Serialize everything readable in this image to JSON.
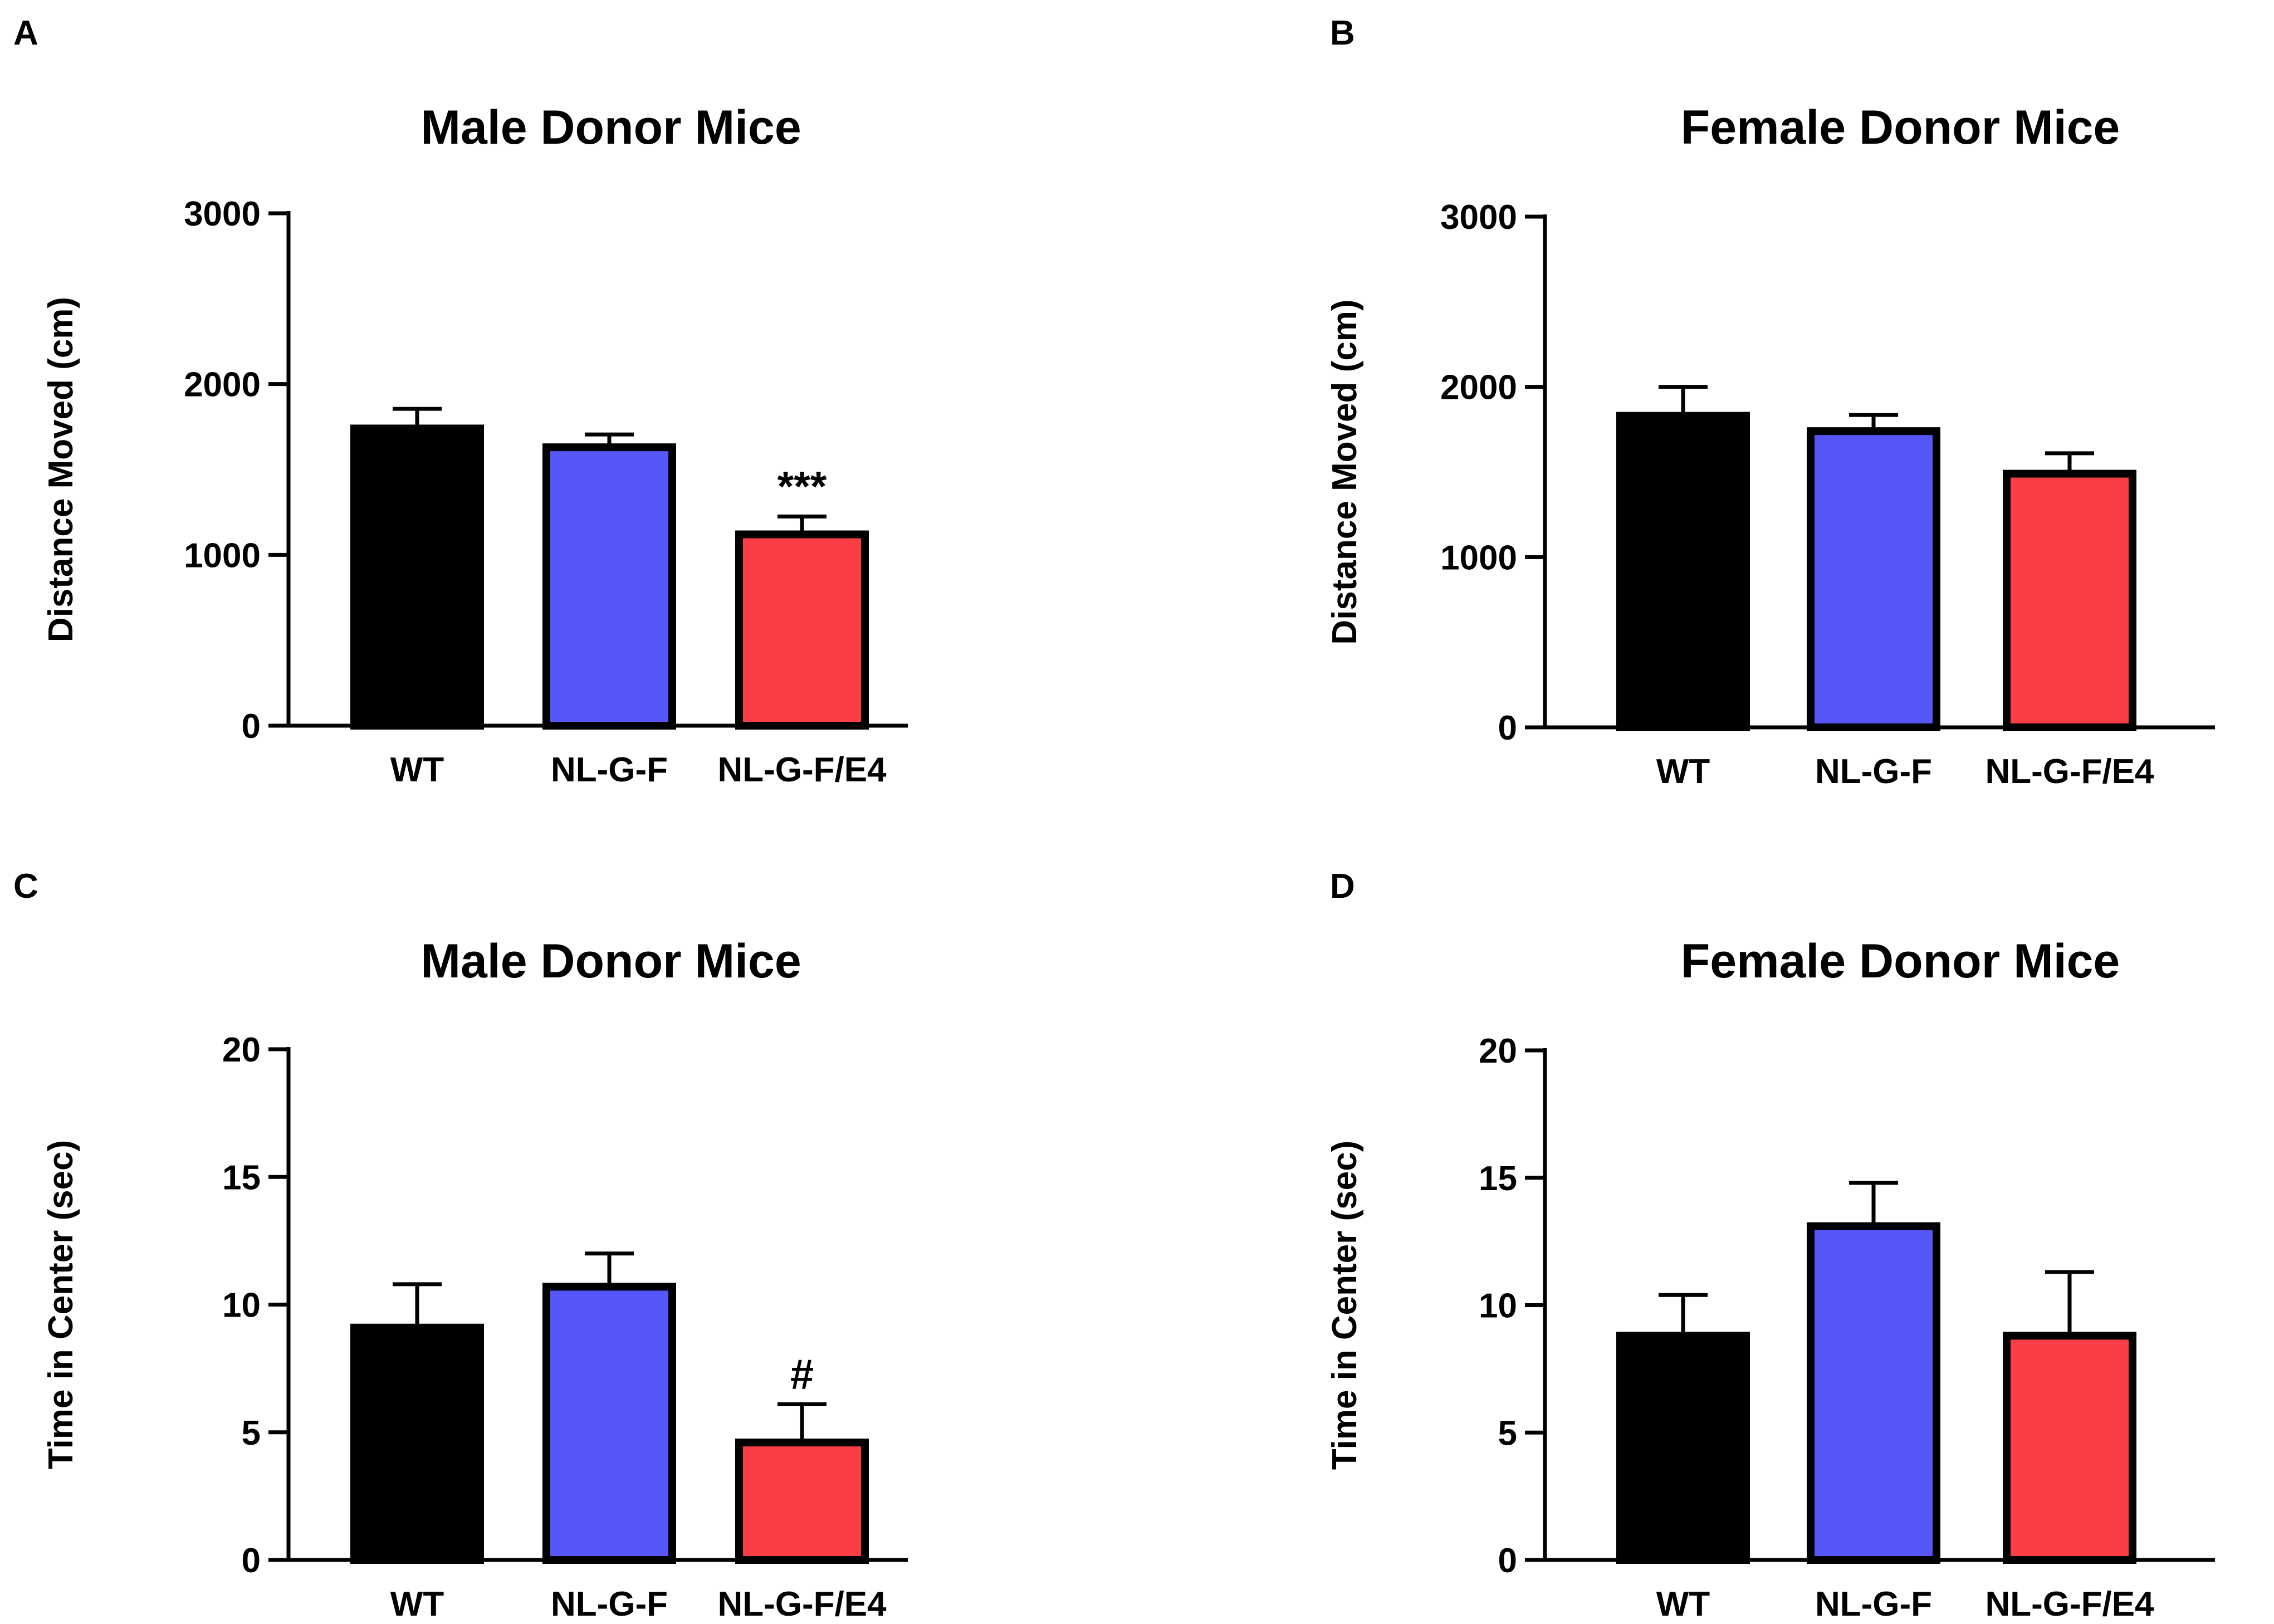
{
  "colors": {
    "text": "#000000",
    "axis": "#000000",
    "bar_outline": "#000000",
    "wt": "#000000",
    "nlgf": "#5757f9",
    "nlgfe4": "#f93f45"
  },
  "chart_data": [
    {
      "id": "A",
      "panel_label": "A",
      "type": "bar",
      "title": "Male Donor Mice",
      "xlabel": "",
      "ylabel": "Distance Moved (cm)",
      "ylim": [
        0,
        3000
      ],
      "yticks": [
        0,
        1000,
        2000,
        3000
      ],
      "tick_labels": [
        "0",
        "1000",
        "2000",
        "3000"
      ],
      "grid": false,
      "categories": [
        "WT",
        "NL-G-F",
        "NL-G-F/E4"
      ],
      "values": [
        1740,
        1630,
        1120
      ],
      "errors": [
        115,
        75,
        105
      ],
      "bar_colors": [
        "#000000",
        "#5757f9",
        "#f93f45"
      ],
      "annotations": [
        "",
        "",
        "***"
      ]
    },
    {
      "id": "B",
      "panel_label": "B",
      "type": "bar",
      "title": "Female Donor Mice",
      "xlabel": "",
      "ylabel": "Distance Moved (cm)",
      "ylim": [
        0,
        3000
      ],
      "yticks": [
        0,
        1000,
        2000,
        3000
      ],
      "tick_labels": [
        "0",
        "1000",
        "2000",
        "3000"
      ],
      "grid": false,
      "categories": [
        "WT",
        "NL-G-F",
        "NL-G-F/E4"
      ],
      "values": [
        1830,
        1740,
        1490
      ],
      "errors": [
        170,
        95,
        120
      ],
      "bar_colors": [
        "#000000",
        "#5757f9",
        "#f93f45"
      ],
      "annotations": [
        "",
        "",
        ""
      ]
    },
    {
      "id": "C",
      "panel_label": "C",
      "type": "bar",
      "title": "Male Donor Mice",
      "xlabel": "",
      "ylabel": "Time in Center (sec)",
      "ylim": [
        0,
        20
      ],
      "yticks": [
        0,
        5,
        10,
        15,
        20
      ],
      "tick_labels": [
        "0",
        "5",
        "10",
        "15",
        "20"
      ],
      "grid": false,
      "categories": [
        "WT",
        "NL-G-F",
        "NL-G-F/E4"
      ],
      "values": [
        9.1,
        10.7,
        4.6
      ],
      "errors": [
        1.7,
        1.3,
        1.5
      ],
      "bar_colors": [
        "#000000",
        "#5757f9",
        "#f93f45"
      ],
      "annotations": [
        "",
        "",
        "#"
      ]
    },
    {
      "id": "D",
      "panel_label": "D",
      "type": "bar",
      "title": "Female Donor Mice",
      "xlabel": "",
      "ylabel": "Time in Center (sec)",
      "ylim": [
        0,
        20
      ],
      "yticks": [
        0,
        5,
        10,
        15,
        20
      ],
      "tick_labels": [
        "0",
        "5",
        "10",
        "15",
        "20"
      ],
      "grid": false,
      "categories": [
        "WT",
        "NL-G-F",
        "NL-G-F/E4"
      ],
      "values": [
        8.8,
        13.1,
        8.8
      ],
      "errors": [
        1.6,
        1.7,
        2.5
      ],
      "bar_colors": [
        "#000000",
        "#5757f9",
        "#f93f45"
      ],
      "annotations": [
        "",
        "",
        ""
      ]
    }
  ]
}
